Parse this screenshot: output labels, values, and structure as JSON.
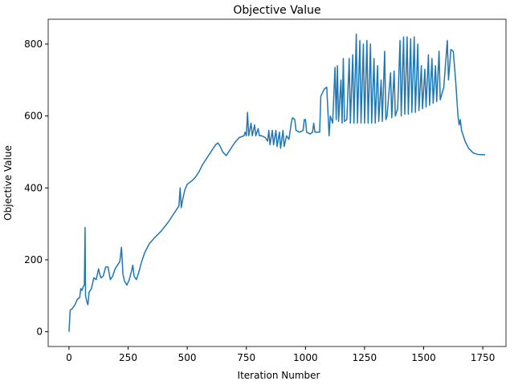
{
  "chart_data": {
    "type": "line",
    "title": "Objective Value",
    "x_label": "Iteration Number",
    "y_label": "Objective Value",
    "x": [
      0,
      5,
      15,
      25,
      35,
      45,
      50,
      55,
      60,
      65,
      68,
      70,
      75,
      80,
      85,
      95,
      105,
      115,
      125,
      130,
      135,
      145,
      155,
      165,
      175,
      185,
      195,
      205,
      215,
      222,
      228,
      235,
      245,
      255,
      265,
      270,
      275,
      285,
      295,
      305,
      320,
      340,
      360,
      390,
      420,
      440,
      460,
      465,
      470,
      475,
      480,
      490,
      500,
      510,
      520,
      535,
      550,
      565,
      580,
      595,
      610,
      620,
      630,
      640,
      650,
      665,
      680,
      700,
      720,
      740,
      745,
      750,
      755,
      760,
      770,
      775,
      785,
      790,
      800,
      805,
      815,
      830,
      840,
      845,
      850,
      860,
      865,
      875,
      880,
      890,
      895,
      905,
      910,
      920,
      930,
      940,
      945,
      955,
      960,
      975,
      990,
      995,
      1000,
      1005,
      1020,
      1030,
      1035,
      1040,
      1060,
      1065,
      1080,
      1090,
      1100,
      1105,
      1115,
      1125,
      1130,
      1135,
      1140,
      1150,
      1155,
      1160,
      1165,
      1175,
      1185,
      1190,
      1200,
      1205,
      1215,
      1220,
      1230,
      1235,
      1245,
      1250,
      1260,
      1265,
      1275,
      1280,
      1290,
      1295,
      1305,
      1310,
      1320,
      1325,
      1335,
      1340,
      1345,
      1360,
      1365,
      1375,
      1380,
      1390,
      1400,
      1405,
      1415,
      1420,
      1430,
      1435,
      1445,
      1450,
      1460,
      1465,
      1475,
      1480,
      1490,
      1495,
      1505,
      1510,
      1520,
      1525,
      1535,
      1540,
      1550,
      1555,
      1565,
      1570,
      1585,
      1600,
      1605,
      1615,
      1625,
      1635,
      1645,
      1650,
      1655,
      1660,
      1675,
      1690,
      1710,
      1730,
      1760
    ],
    "series": [
      {
        "color": "#1f77b4",
        "values": [
          0,
          60,
          65,
          75,
          90,
          95,
          120,
          115,
          125,
          130,
          290,
          100,
          85,
          75,
          110,
          120,
          150,
          145,
          175,
          160,
          150,
          155,
          180,
          180,
          145,
          155,
          175,
          185,
          195,
          235,
          160,
          140,
          130,
          145,
          170,
          185,
          155,
          145,
          165,
          190,
          220,
          245,
          260,
          280,
          305,
          325,
          345,
          350,
          400,
          345,
          365,
          395,
          410,
          415,
          420,
          430,
          445,
          465,
          480,
          495,
          510,
          520,
          525,
          515,
          500,
          490,
          505,
          525,
          540,
          545,
          555,
          545,
          610,
          545,
          580,
          545,
          575,
          545,
          565,
          545,
          545,
          540,
          530,
          560,
          520,
          560,
          520,
          560,
          515,
          555,
          510,
          560,
          515,
          545,
          535,
          580,
          595,
          590,
          560,
          555,
          560,
          590,
          590,
          555,
          550,
          555,
          580,
          555,
          555,
          655,
          675,
          680,
          545,
          600,
          580,
          735,
          590,
          740,
          585,
          700,
          580,
          760,
          585,
          590,
          760,
          580,
          770,
          580,
          828,
          580,
          810,
          580,
          800,
          580,
          810,
          580,
          800,
          580,
          760,
          580,
          740,
          585,
          700,
          585,
          780,
          590,
          600,
          720,
          595,
          725,
          600,
          620,
          810,
          600,
          820,
          605,
          820,
          605,
          815,
          610,
          820,
          610,
          800,
          615,
          740,
          620,
          730,
          625,
          770,
          630,
          760,
          635,
          740,
          640,
          780,
          645,
          680,
          810,
          700,
          785,
          780,
          700,
          600,
          575,
          590,
          560,
          530,
          510,
          497,
          493,
          492
        ]
      }
    ],
    "xlim": [
      -88,
      1848
    ],
    "xticks": [
      0,
      250,
      500,
      750,
      1000,
      1250,
      1500,
      1750
    ],
    "ylim": [
      -41,
      869
    ],
    "yticks": [
      0,
      200,
      400,
      600,
      800
    ],
    "grid": false
  }
}
